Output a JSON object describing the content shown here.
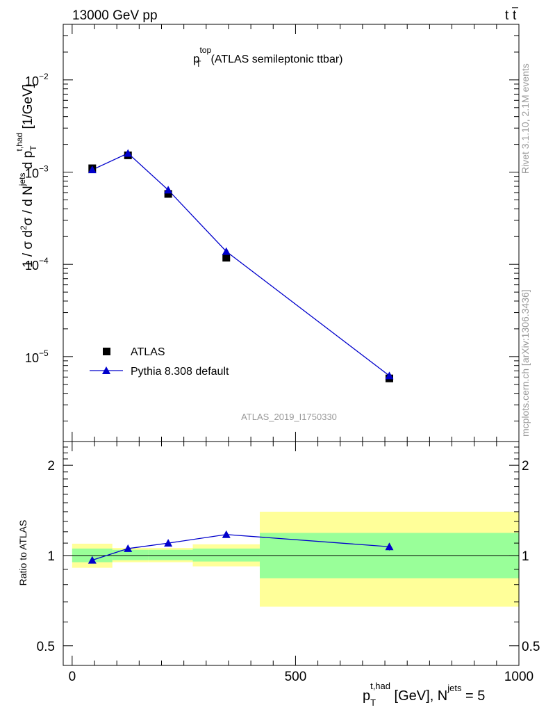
{
  "header": {
    "energy_label": "13000 GeV pp",
    "process_t": "t",
    "process_tbar": "t"
  },
  "side_labels": {
    "rivet": "Rivet 3.1.10,  2.1M events",
    "mcplots": "mcplots.cern.ch [arXiv:1306.3436]"
  },
  "chart_data": [
    {
      "type": "scatter",
      "panel": "main",
      "title_p": "p",
      "title_sub": "T",
      "title_sup": "top",
      "title_rest": "(ATLAS semileptonic ttbar)",
      "ylabel": "1 / σ d²σ / d N^jets d p_T^t,had [1/GeV]",
      "ylabel_parts": {
        "a": "1 / σ d",
        "a_sup": "2",
        "b": "σ /  d N",
        "b_sup": "jets",
        "c": " d p",
        "c_sub": "T",
        "c_sup": "t,had",
        "unit": " [1/GeV]"
      },
      "yscale": "log",
      "ylim": [
        1.2e-06,
        0.04
      ],
      "xlim": [
        -20,
        1000
      ],
      "yticks": [
        {
          "value": 0.01,
          "base": "10",
          "exp": "−2"
        },
        {
          "value": 0.001,
          "base": "10",
          "exp": "−3"
        },
        {
          "value": 0.0001,
          "base": "10",
          "exp": "−4"
        },
        {
          "value": 1e-05,
          "base": "10",
          "exp": "−5"
        }
      ],
      "watermark": "ATLAS_2019_I1750330",
      "legend_position": "bottom-left",
      "series": [
        {
          "name": "ATLAS",
          "marker": "square",
          "color": "#000000",
          "x": [
            45,
            125,
            215,
            345,
            710
          ],
          "y": [
            0.0011,
            0.00152,
            0.00058,
            0.000118,
            5.8e-06
          ]
        },
        {
          "name": "Pythia 8.308 default",
          "marker": "triangle",
          "color": "#0000cc",
          "x": [
            45,
            125,
            215,
            345,
            710
          ],
          "y": [
            0.00106,
            0.0016,
            0.00064,
            0.000138,
            6.2e-06
          ]
        }
      ]
    },
    {
      "type": "line",
      "panel": "ratio",
      "ylabel": "Ratio to ATLAS",
      "yscale": "log",
      "ylim": [
        0.43,
        2.4
      ],
      "xlim": [
        -20,
        1000
      ],
      "yticks": [
        {
          "value": 0.5,
          "label": "0.5"
        },
        {
          "value": 1,
          "label": "1"
        },
        {
          "value": 2,
          "label": "2"
        }
      ],
      "xticks": [
        {
          "value": 0,
          "label": "0"
        },
        {
          "value": 500,
          "label": "500"
        },
        {
          "value": 1000,
          "label": "1000"
        }
      ],
      "xlabel_parts": {
        "p": "p",
        "p_sub": "T",
        "p_sup": "t,had",
        "mid": " [GeV], N",
        "n_sup": "jets",
        "end": " = 5"
      },
      "bins": [
        {
          "lo": 0,
          "hi": 90,
          "green_lo": 0.95,
          "green_hi": 1.055,
          "yellow_lo": 0.91,
          "yellow_hi": 1.095
        },
        {
          "lo": 90,
          "hi": 170,
          "green_lo": 0.965,
          "green_hi": 1.045,
          "yellow_lo": 0.95,
          "yellow_hi": 1.06
        },
        {
          "lo": 170,
          "hi": 270,
          "green_lo": 0.965,
          "green_hi": 1.045,
          "yellow_lo": 0.95,
          "yellow_hi": 1.06
        },
        {
          "lo": 270,
          "hi": 420,
          "green_lo": 0.955,
          "green_hi": 1.055,
          "yellow_lo": 0.92,
          "yellow_hi": 1.09
        },
        {
          "lo": 420,
          "hi": 1000,
          "green_lo": 0.84,
          "green_hi": 1.19,
          "yellow_lo": 0.675,
          "yellow_hi": 1.4
        }
      ],
      "series": [
        {
          "name": "Pythia 8.308 default",
          "color": "#0000cc",
          "x": [
            45,
            125,
            215,
            345,
            710
          ],
          "y": [
            0.965,
            1.055,
            1.1,
            1.175,
            1.07
          ],
          "yerr": [
            0.005,
            0.005,
            0.005,
            0.005,
            0.03
          ]
        }
      ]
    }
  ]
}
